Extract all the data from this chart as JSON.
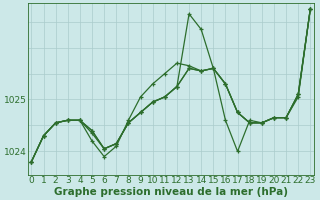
{
  "xlabel": "Graphe pression niveau de la mer (hPa)",
  "bg_color": "#cce8e8",
  "grid_color": "#aacccc",
  "line_color": "#2d6e2d",
  "x_ticks": [
    0,
    1,
    2,
    3,
    4,
    5,
    6,
    7,
    8,
    9,
    10,
    11,
    12,
    13,
    14,
    15,
    16,
    17,
    18,
    19,
    20,
    21,
    22,
    23
  ],
  "y_ticks": [
    1024,
    1025
  ],
  "ylim": [
    1023.55,
    1026.85
  ],
  "xlim": [
    -0.3,
    23.3
  ],
  "series": [
    [
      1023.8,
      1024.3,
      1024.55,
      1024.6,
      1024.6,
      1024.4,
      1024.05,
      1024.15,
      1024.55,
      1024.75,
      1024.95,
      1025.05,
      1025.25,
      1025.6,
      1025.55,
      1025.6,
      1025.3,
      1024.75,
      1024.55,
      1024.55,
      1024.65,
      1024.65,
      1025.1,
      1026.75
    ],
    [
      1023.8,
      1024.3,
      1024.55,
      1024.6,
      1024.6,
      1024.4,
      1024.05,
      1024.15,
      1024.55,
      1024.75,
      1024.95,
      1025.05,
      1025.25,
      1026.65,
      1026.35,
      1025.6,
      1024.6,
      1024.0,
      1024.6,
      1024.55,
      1024.65,
      1024.65,
      1025.1,
      1026.75
    ],
    [
      1023.8,
      1024.3,
      1024.55,
      1024.6,
      1024.6,
      1024.2,
      1023.9,
      1024.1,
      1024.6,
      1025.05,
      1025.3,
      1025.5,
      1025.7,
      1025.65,
      1025.55,
      1025.6,
      1025.3,
      1024.75,
      1024.55,
      1024.55,
      1024.65,
      1024.65,
      1025.05,
      1026.75
    ],
    [
      1023.8,
      1024.3,
      1024.55,
      1024.6,
      1024.6,
      1024.35,
      1024.05,
      1024.15,
      1024.55,
      1024.75,
      1024.95,
      1025.05,
      1025.25,
      1025.6,
      1025.55,
      1025.6,
      1025.3,
      1024.75,
      1024.55,
      1024.55,
      1024.65,
      1024.65,
      1025.1,
      1026.75
    ]
  ],
  "xlabel_fontsize": 7.5,
  "tick_fontsize": 6.5
}
